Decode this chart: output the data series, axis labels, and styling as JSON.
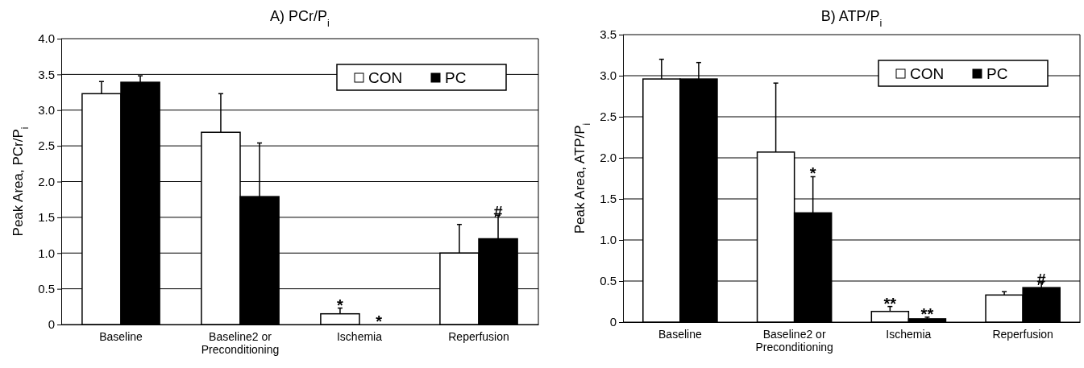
{
  "chart_data": [
    {
      "type": "bar",
      "title": "A) PCr/P$_{i}$",
      "ylabel": "Peak Area, PCr/P$_{i}$",
      "categories": [
        "Baseline",
        "Baseline2 or Preconditioning",
        "Ischemia",
        "Reperfusion"
      ],
      "series": [
        {
          "name": "CON",
          "color": "#ffffff",
          "values": [
            3.23,
            2.69,
            0.15,
            1.0
          ],
          "errors": [
            0.17,
            0.54,
            0.08,
            0.4
          ]
        },
        {
          "name": "PC",
          "color": "#000000",
          "values": [
            3.39,
            1.79,
            0,
            1.2
          ],
          "errors": [
            0.09,
            0.75,
            null,
            0.33
          ]
        }
      ],
      "ylim": [
        0,
        4
      ],
      "yticks": [
        0,
        0.5,
        {
          "value": 1,
          "label": "1.0"
        },
        1.5,
        {
          "value": 2,
          "label": "2.0"
        },
        2.5,
        {
          "value": 3,
          "label": "3.0"
        },
        3.5,
        {
          "value": 4,
          "label": "4.0"
        }
      ],
      "grid": "y",
      "legend": "top right",
      "annotations": [
        {
          "text": "*",
          "x": "Ischemia",
          "y": 0.15
        },
        {
          "text": "*",
          "x": "Ischemia",
          "y": 0
        },
        {
          "text": "#",
          "x": "Reperfusion",
          "y": 1.2
        }
      ]
    },
    {
      "type": "bar",
      "title": "B) ATP/P$_{i}$",
      "ylabel": "Peak Area, ATP/P$_{i}$",
      "categories": [
        "Baseline",
        "Baseline2 or Preconditioning",
        "Ischemia",
        "Reperfusion"
      ],
      "series": [
        {
          "name": "CON",
          "color": "#ffffff",
          "values": [
            2.96,
            2.07,
            0.13,
            0.33
          ],
          "errors": [
            0.24,
            0.84,
            0.06,
            0.04
          ]
        },
        {
          "name": "PC",
          "color": "#000000",
          "values": [
            2.96,
            1.33,
            0.04,
            0.42
          ],
          "errors": [
            0.2,
            0.44,
            0.02,
            0.06
          ]
        }
      ],
      "ylim": [
        0,
        3.5
      ],
      "yticks": [
        0,
        0.5,
        {
          "value": 1,
          "label": "1.0"
        },
        1.5,
        {
          "value": 2,
          "label": "2.0"
        },
        2.5,
        {
          "value": 3,
          "label": "3.0"
        },
        3.5
      ],
      "grid": "y",
      "legend": "top right",
      "annotations": [
        {
          "text": "*",
          "x": "Baseline2 or Preconditioning",
          "y": 1.33
        },
        {
          "text": "**",
          "x": "Ischemia",
          "y": 0.13
        },
        {
          "text": "**",
          "x": "Ischemia",
          "y": 0.04
        },
        {
          "text": "#",
          "x": "Reperfusion",
          "y": 0.42
        }
      ]
    }
  ]
}
